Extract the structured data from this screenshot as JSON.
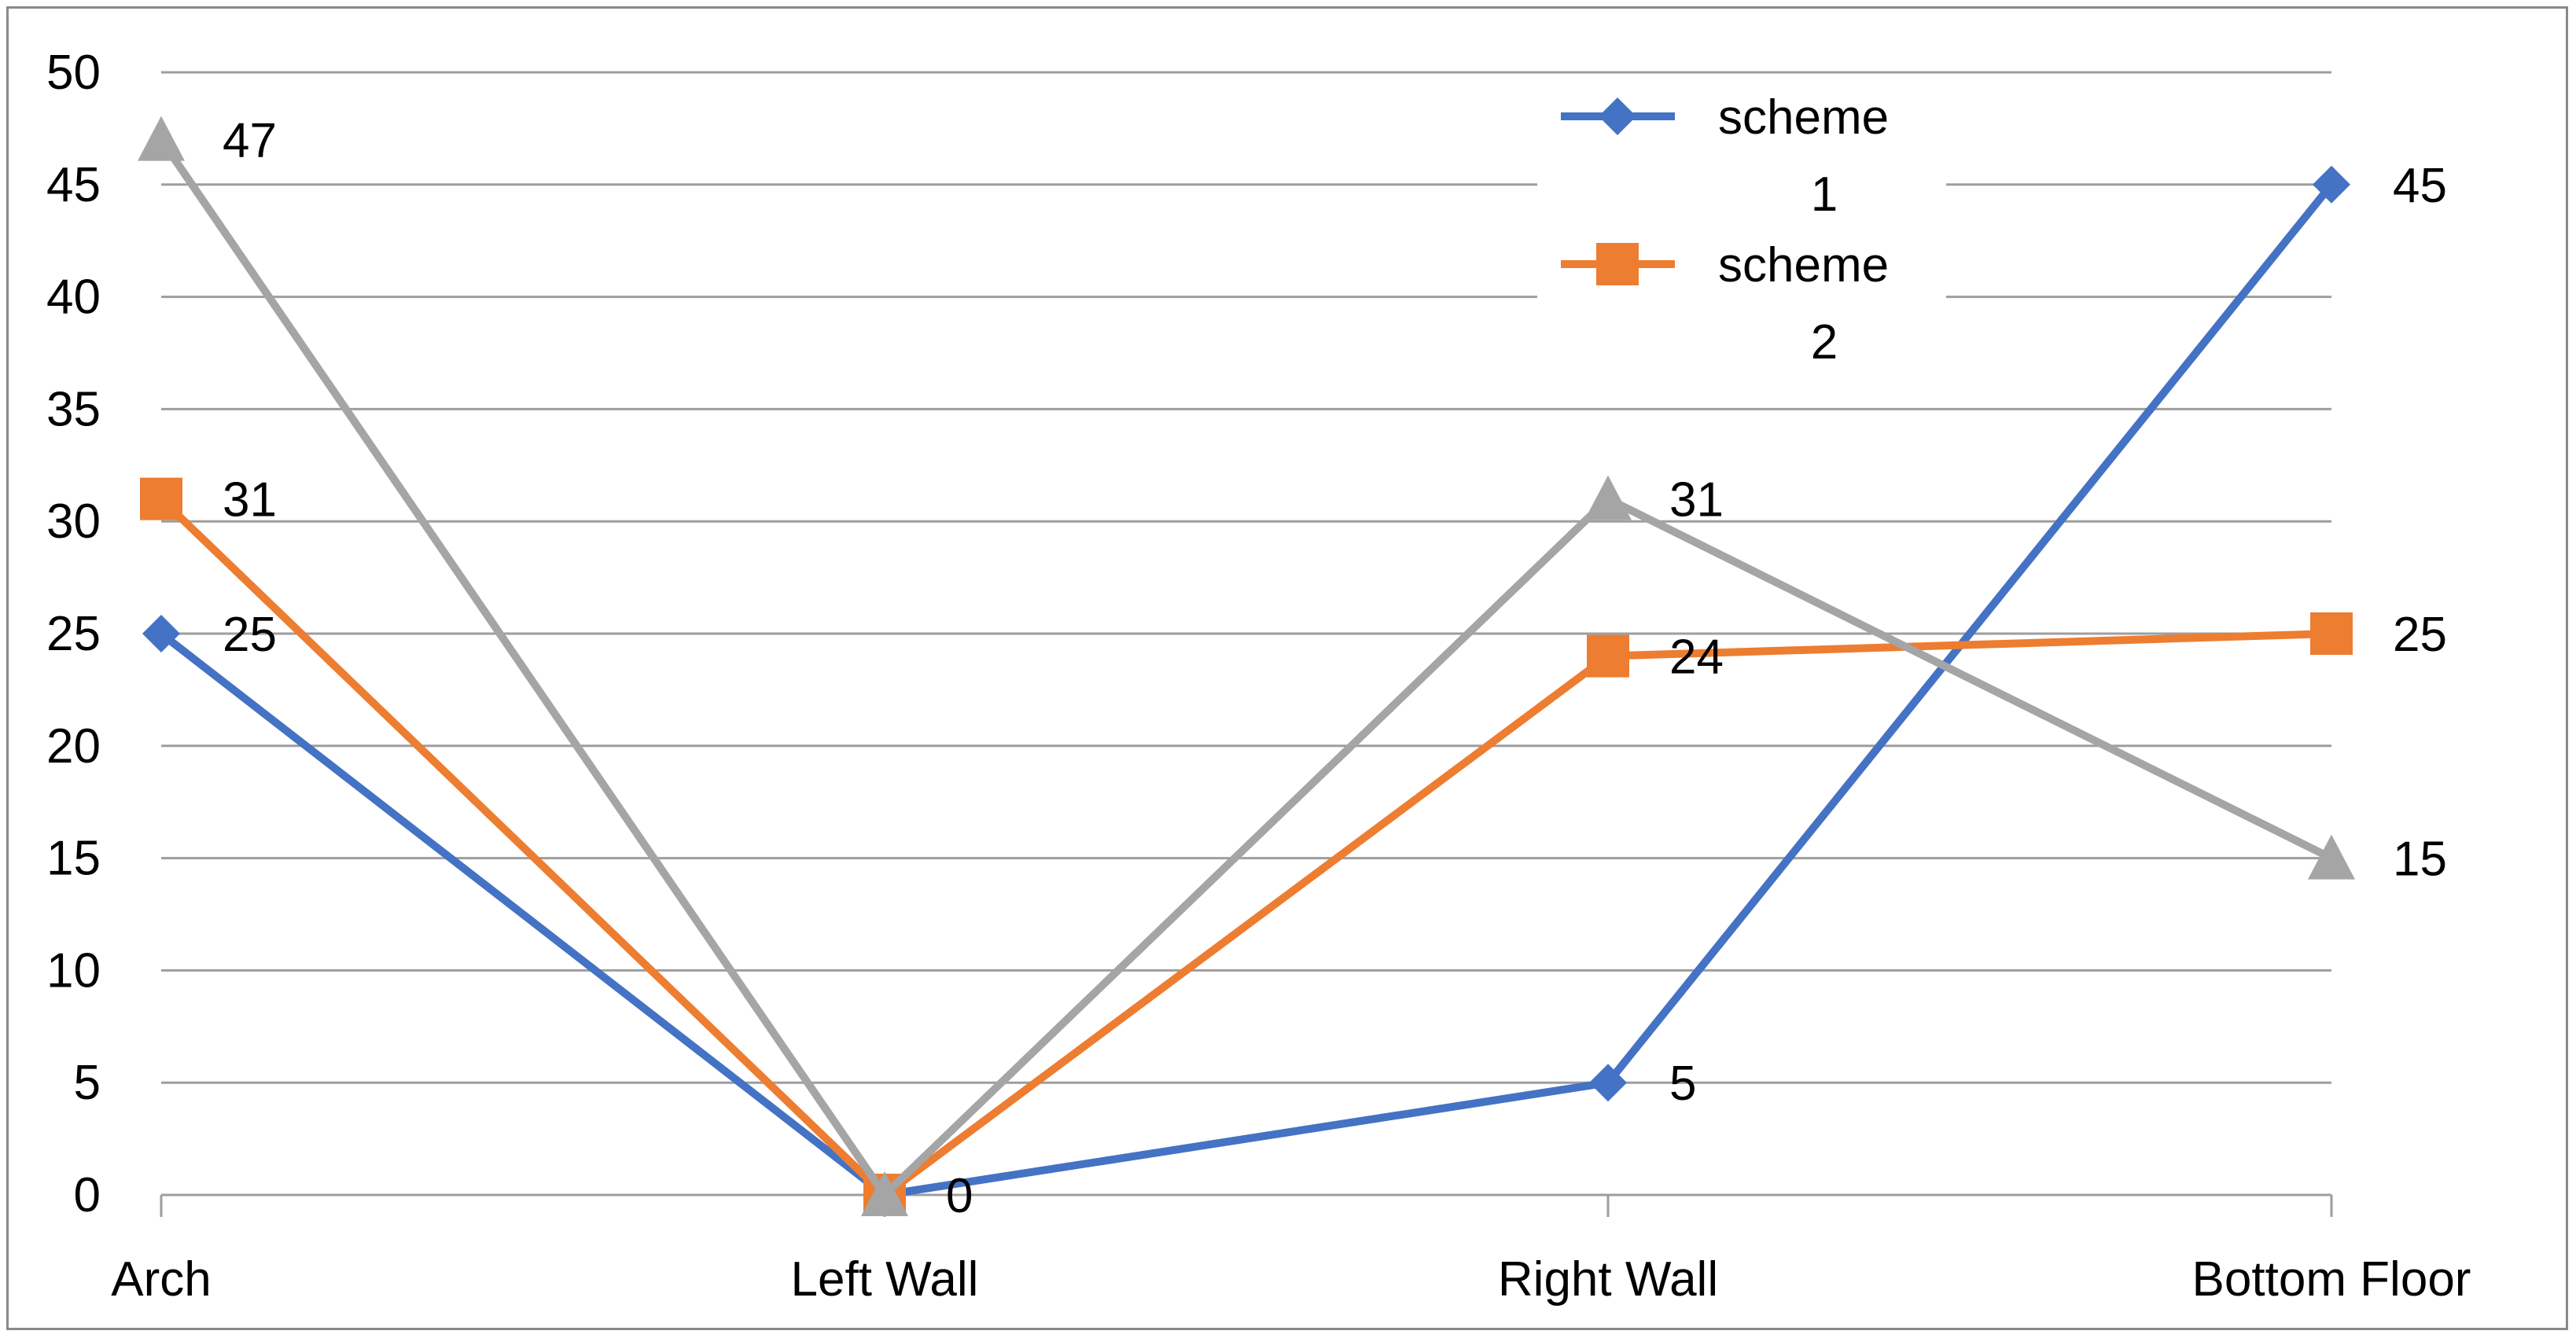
{
  "chart_data": {
    "type": "line",
    "categories": [
      "Arch",
      "Left Wall",
      "Right Wall",
      "Bottom Floor"
    ],
    "ylim": [
      0,
      50
    ],
    "yticks": [
      0,
      5,
      10,
      15,
      20,
      25,
      30,
      35,
      40,
      45,
      50
    ],
    "grid": true,
    "legend_position": "top-right",
    "series": [
      {
        "name": "scheme 1",
        "name_lines": [
          "scheme",
          "1"
        ],
        "values": [
          25,
          0,
          5,
          45
        ],
        "color": "#4472C4",
        "marker": "diamond",
        "labels": [
          "25",
          "",
          "5",
          "45"
        ]
      },
      {
        "name": "scheme 2",
        "name_lines": [
          "scheme",
          "2"
        ],
        "values": [
          31,
          0,
          24,
          25
        ],
        "color": "#ED7D31",
        "marker": "square",
        "labels": [
          "31",
          "",
          "24",
          "25"
        ]
      },
      {
        "values": [
          47,
          0,
          31,
          15
        ],
        "color": "#A5A5A5",
        "marker": "triangle",
        "labels": [
          "47",
          "0",
          "31",
          "15"
        ]
      }
    ]
  }
}
